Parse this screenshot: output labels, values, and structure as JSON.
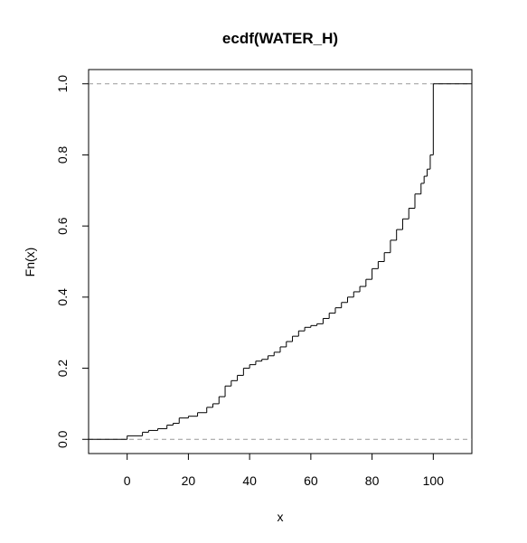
{
  "chart_data": {
    "type": "line",
    "subtype": "ecdf-step",
    "title": "ecdf(WATER_H)",
    "xlabel": "x",
    "ylabel": "Fn(x)",
    "xlim": [
      -12.6,
      112.6
    ],
    "ylim": [
      -0.04,
      1.04
    ],
    "x_ticks": [
      0,
      20,
      40,
      60,
      80,
      100
    ],
    "y_ticks": [
      0.0,
      0.2,
      0.4,
      0.6,
      0.8,
      1.0
    ],
    "x_tick_labels": [
      "0",
      "20",
      "40",
      "60",
      "80",
      "100"
    ],
    "y_tick_labels": [
      "0.0",
      "0.2",
      "0.4",
      "0.6",
      "0.8",
      "1.0"
    ],
    "reference_lines": [
      0,
      1
    ],
    "reference_line_style": "dashed",
    "grid": false,
    "legend": "none",
    "line_color": "#000000",
    "reference_line_color": "#999999",
    "series": [
      {
        "x": [
          -12.6,
          0,
          5,
          7,
          10,
          13,
          15,
          17,
          20,
          23,
          26,
          28,
          30,
          32,
          34,
          36,
          38,
          40,
          42,
          44,
          46,
          48,
          50,
          52,
          54,
          56,
          58,
          60,
          62,
          64,
          66,
          68,
          70,
          72,
          74,
          76,
          78,
          80,
          82,
          84,
          86,
          88,
          90,
          92,
          94,
          96,
          97,
          98,
          99,
          100,
          112.6
        ],
        "y": [
          0.0,
          0.01,
          0.02,
          0.025,
          0.03,
          0.04,
          0.045,
          0.06,
          0.065,
          0.075,
          0.09,
          0.1,
          0.12,
          0.15,
          0.165,
          0.18,
          0.2,
          0.21,
          0.22,
          0.225,
          0.235,
          0.245,
          0.26,
          0.275,
          0.29,
          0.305,
          0.315,
          0.32,
          0.325,
          0.34,
          0.355,
          0.37,
          0.385,
          0.4,
          0.415,
          0.43,
          0.45,
          0.48,
          0.5,
          0.525,
          0.56,
          0.59,
          0.62,
          0.65,
          0.69,
          0.72,
          0.74,
          0.76,
          0.8,
          1.0,
          1.0
        ]
      }
    ]
  }
}
